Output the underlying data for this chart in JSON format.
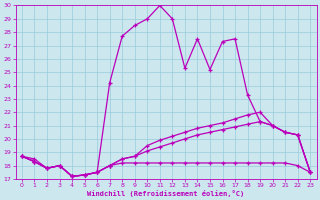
{
  "xlabel": "Windchill (Refroidissement éolien,°C)",
  "bg_color": "#cce8ee",
  "grid_color": "#99ccdd",
  "line_color": "#bb00bb",
  "xlim": [
    -0.5,
    23.5
  ],
  "ylim": [
    17,
    30
  ],
  "yticks": [
    17,
    18,
    19,
    20,
    21,
    22,
    23,
    24,
    25,
    26,
    27,
    28,
    29,
    30
  ],
  "xticks": [
    0,
    1,
    2,
    3,
    4,
    5,
    6,
    7,
    8,
    9,
    10,
    11,
    12,
    13,
    14,
    15,
    16,
    17,
    18,
    19,
    20,
    21,
    22,
    23
  ],
  "curve1_x": [
    0,
    1,
    2,
    3,
    4,
    5,
    6,
    7,
    8,
    9,
    10,
    11,
    12,
    13,
    14,
    15,
    16,
    17,
    18,
    19,
    20,
    21,
    22,
    23
  ],
  "curve1_y": [
    18.7,
    18.5,
    17.8,
    18.0,
    17.2,
    17.3,
    17.5,
    24.2,
    27.7,
    28.5,
    29.0,
    30.0,
    29.0,
    25.3,
    27.5,
    25.2,
    27.3,
    27.5,
    23.3,
    21.3,
    21.0,
    20.5,
    20.3,
    17.5
  ],
  "curve2_x": [
    0,
    1,
    2,
    3,
    4,
    5,
    6,
    7,
    8,
    9,
    10,
    11,
    12,
    13,
    14,
    15,
    16,
    17,
    18,
    19,
    20,
    21,
    22,
    23
  ],
  "curve2_y": [
    18.7,
    18.3,
    17.8,
    18.0,
    17.2,
    17.3,
    17.5,
    18.0,
    18.2,
    18.2,
    18.2,
    18.2,
    18.2,
    18.2,
    18.2,
    18.2,
    18.2,
    18.2,
    18.2,
    18.2,
    18.2,
    18.2,
    18.0,
    17.5
  ],
  "curve3_x": [
    0,
    1,
    2,
    3,
    4,
    5,
    6,
    7,
    8,
    9,
    10,
    11,
    12,
    13,
    14,
    15,
    16,
    17,
    18,
    19,
    20,
    21,
    22,
    23
  ],
  "curve3_y": [
    18.7,
    18.3,
    17.8,
    18.0,
    17.2,
    17.3,
    17.5,
    18.0,
    18.5,
    18.7,
    19.1,
    19.4,
    19.7,
    20.0,
    20.3,
    20.5,
    20.7,
    20.9,
    21.1,
    21.3,
    21.0,
    20.5,
    20.3,
    17.5
  ],
  "curve4_x": [
    0,
    1,
    2,
    3,
    4,
    5,
    6,
    7,
    8,
    9,
    10,
    11,
    12,
    13,
    14,
    15,
    16,
    17,
    18,
    19,
    20,
    21,
    22,
    23
  ],
  "curve4_y": [
    18.7,
    18.3,
    17.8,
    18.0,
    17.2,
    17.3,
    17.5,
    18.0,
    18.5,
    18.7,
    19.5,
    19.9,
    20.2,
    20.5,
    20.8,
    21.0,
    21.2,
    21.5,
    21.8,
    22.0,
    21.0,
    20.5,
    20.3,
    17.5
  ]
}
